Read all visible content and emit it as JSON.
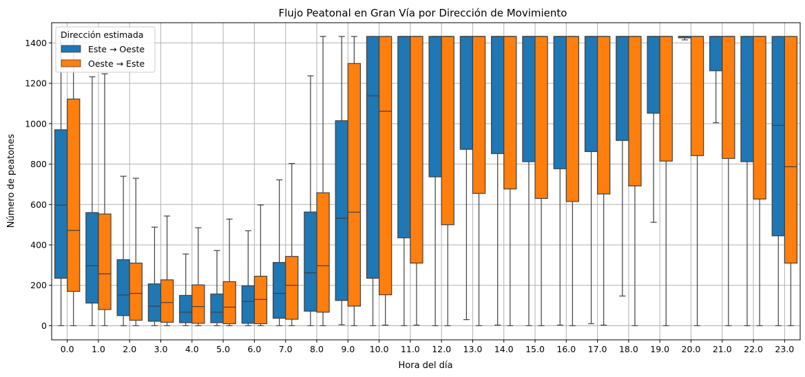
{
  "chart_data": {
    "type": "boxplot",
    "title": "Flujo Peatonal en Gran Vía por Dirección de Movimiento",
    "xlabel": "Hora del día",
    "ylabel": "Número de peatones",
    "categories": [
      "0.0",
      "1.0",
      "2.0",
      "3.0",
      "4.0",
      "5.0",
      "6.0",
      "7.0",
      "8.0",
      "9.0",
      "10.0",
      "11.0",
      "12.0",
      "13.0",
      "14.0",
      "15.0",
      "16.0",
      "17.0",
      "18.0",
      "19.0",
      "20.0",
      "21.0",
      "22.0",
      "23.0"
    ],
    "ylim": [
      -70,
      1500
    ],
    "yticks": [
      0,
      200,
      400,
      600,
      800,
      1000,
      1200,
      1400
    ],
    "grid": true,
    "legend": {
      "title": "Dirección estimada",
      "position": "top-left"
    },
    "series": [
      {
        "name": "Este → Oeste",
        "color": "#1f77b4",
        "boxes": [
          {
            "whislo": 0,
            "q1": 235,
            "med": 597,
            "q3": 970,
            "whishi": 1432
          },
          {
            "whislo": 0,
            "q1": 112,
            "med": 297,
            "q3": 560,
            "whishi": 1232
          },
          {
            "whislo": 0,
            "q1": 50,
            "med": 152,
            "q3": 327,
            "whishi": 740
          },
          {
            "whislo": 0,
            "q1": 22,
            "med": 97,
            "q3": 207,
            "whishi": 488
          },
          {
            "whislo": 0,
            "q1": 15,
            "med": 67,
            "q3": 150,
            "whishi": 355
          },
          {
            "whislo": 0,
            "q1": 15,
            "med": 67,
            "q3": 157,
            "whishi": 372
          },
          {
            "whislo": 0,
            "q1": 12,
            "med": 120,
            "q3": 197,
            "whishi": 470
          },
          {
            "whislo": 0,
            "q1": 37,
            "med": 160,
            "q3": 313,
            "whishi": 722
          },
          {
            "whislo": 0,
            "q1": 72,
            "med": 262,
            "q3": 563,
            "whishi": 1237
          },
          {
            "whislo": 5,
            "q1": 125,
            "med": 532,
            "q3": 1015,
            "whishi": 1432
          },
          {
            "whislo": 0,
            "q1": 235,
            "med": 1138,
            "q3": 1432,
            "whishi": 1432
          },
          {
            "whislo": 0,
            "q1": 435,
            "med": 1432,
            "q3": 1432,
            "whishi": 1432
          },
          {
            "whislo": 0,
            "q1": 737,
            "med": 1432,
            "q3": 1432,
            "whishi": 1432
          },
          {
            "whislo": 30,
            "q1": 873,
            "med": 1432,
            "q3": 1432,
            "whishi": 1432
          },
          {
            "whislo": 3,
            "q1": 852,
            "med": 1432,
            "q3": 1432,
            "whishi": 1432
          },
          {
            "whislo": 0,
            "q1": 812,
            "med": 1432,
            "q3": 1432,
            "whishi": 1432
          },
          {
            "whislo": 3,
            "q1": 777,
            "med": 1432,
            "q3": 1432,
            "whishi": 1432
          },
          {
            "whislo": 10,
            "q1": 862,
            "med": 1432,
            "q3": 1432,
            "whishi": 1432
          },
          {
            "whislo": 147,
            "q1": 917,
            "med": 1432,
            "q3": 1432,
            "whishi": 1432
          },
          {
            "whislo": 512,
            "q1": 1052,
            "med": 1432,
            "q3": 1432,
            "whishi": 1432
          },
          {
            "whislo": 1415,
            "q1": 1425,
            "med": 1432,
            "q3": 1432,
            "whishi": 1432
          },
          {
            "whislo": 1005,
            "q1": 1262,
            "med": 1432,
            "q3": 1432,
            "whishi": 1432
          },
          {
            "whislo": 0,
            "q1": 812,
            "med": 1432,
            "q3": 1432,
            "whishi": 1432
          },
          {
            "whislo": 0,
            "q1": 445,
            "med": 992,
            "q3": 1432,
            "whishi": 1432
          }
        ]
      },
      {
        "name": "Oeste → Este",
        "color": "#ff7f0e",
        "boxes": [
          {
            "whislo": 0,
            "q1": 170,
            "med": 472,
            "q3": 1122,
            "whishi": 1432
          },
          {
            "whislo": 0,
            "q1": 80,
            "med": 257,
            "q3": 553,
            "whishi": 1247
          },
          {
            "whislo": 0,
            "q1": 27,
            "med": 160,
            "q3": 310,
            "whishi": 730
          },
          {
            "whislo": 0,
            "q1": 17,
            "med": 115,
            "q3": 227,
            "whishi": 543
          },
          {
            "whislo": 0,
            "q1": 12,
            "med": 95,
            "q3": 202,
            "whishi": 485
          },
          {
            "whislo": 0,
            "q1": 10,
            "med": 92,
            "q3": 218,
            "whishi": 528
          },
          {
            "whislo": 0,
            "q1": 10,
            "med": 130,
            "q3": 245,
            "whishi": 598
          },
          {
            "whislo": 0,
            "q1": 32,
            "med": 200,
            "q3": 343,
            "whishi": 803
          },
          {
            "whislo": 0,
            "q1": 67,
            "med": 297,
            "q3": 658,
            "whishi": 1432
          },
          {
            "whislo": 0,
            "q1": 97,
            "med": 562,
            "q3": 1298,
            "whishi": 1432
          },
          {
            "whislo": 3,
            "q1": 153,
            "med": 1062,
            "q3": 1432,
            "whishi": 1432
          },
          {
            "whislo": 3,
            "q1": 310,
            "med": 1432,
            "q3": 1432,
            "whishi": 1432
          },
          {
            "whislo": 0,
            "q1": 500,
            "med": 1432,
            "q3": 1432,
            "whishi": 1432
          },
          {
            "whislo": 0,
            "q1": 655,
            "med": 1432,
            "q3": 1432,
            "whishi": 1432
          },
          {
            "whislo": 0,
            "q1": 677,
            "med": 1432,
            "q3": 1432,
            "whishi": 1432
          },
          {
            "whislo": 0,
            "q1": 630,
            "med": 1432,
            "q3": 1432,
            "whishi": 1432
          },
          {
            "whislo": 0,
            "q1": 615,
            "med": 1432,
            "q3": 1432,
            "whishi": 1432
          },
          {
            "whislo": 3,
            "q1": 652,
            "med": 1432,
            "q3": 1432,
            "whishi": 1432
          },
          {
            "whislo": 0,
            "q1": 692,
            "med": 1432,
            "q3": 1432,
            "whishi": 1432
          },
          {
            "whislo": 0,
            "q1": 815,
            "med": 1432,
            "q3": 1432,
            "whishi": 1432
          },
          {
            "whislo": 0,
            "q1": 842,
            "med": 1432,
            "q3": 1432,
            "whishi": 1432
          },
          {
            "whislo": 0,
            "q1": 828,
            "med": 1432,
            "q3": 1432,
            "whishi": 1432
          },
          {
            "whislo": 0,
            "q1": 627,
            "med": 1432,
            "q3": 1432,
            "whishi": 1432
          },
          {
            "whislo": 0,
            "q1": 310,
            "med": 787,
            "q3": 1432,
            "whishi": 1432
          }
        ]
      }
    ]
  }
}
